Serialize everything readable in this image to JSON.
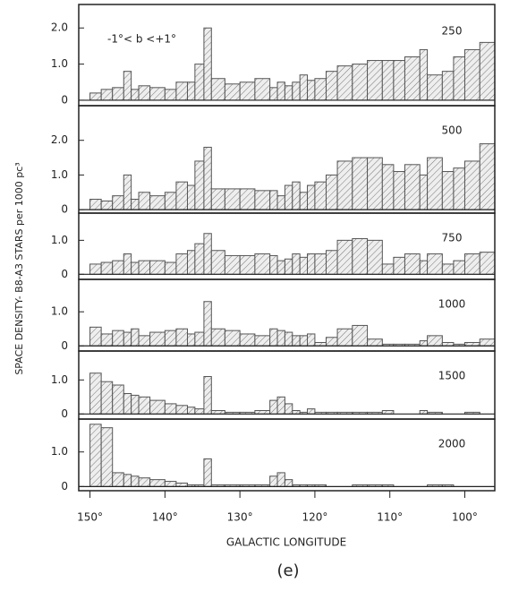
{
  "figure": {
    "ylabel": "SPACE DENSITY- B8-A3 STARS per 1000 pc³",
    "xlabel": "GALACTIC LONGITUDE",
    "caption": "(e)",
    "annotation": "-1°< b <+1°"
  },
  "chart_data": [
    {
      "type": "histogram",
      "label": "250",
      "color": "#555555",
      "xlim": [
        151.5,
        96
      ],
      "ylim": [
        -0.15,
        2.65
      ],
      "yticks": [
        0,
        {
          "value": 1,
          "label": "1.0"
        },
        {
          "value": 2,
          "label": "2.0"
        }
      ],
      "bins": [
        150,
        148.5,
        147,
        145.5,
        144.5,
        143.5,
        142,
        140,
        138.5,
        137,
        136,
        134.8,
        133.8,
        132,
        130,
        128,
        126,
        125,
        124,
        123,
        122,
        121,
        120,
        118.5,
        117,
        115,
        113,
        111,
        109.5,
        108,
        106,
        105,
        103,
        101.5,
        100,
        98,
        96
      ],
      "values": [
        0.2,
        0.3,
        0.35,
        0.8,
        0.3,
        0.4,
        0.35,
        0.3,
        0.5,
        0.5,
        1.0,
        2.0,
        0.6,
        0.45,
        0.5,
        0.6,
        0.35,
        0.5,
        0.4,
        0.5,
        0.7,
        0.55,
        0.6,
        0.8,
        0.95,
        1.0,
        1.1,
        1.1,
        1.1,
        1.2,
        1.4,
        0.7,
        0.8,
        1.2,
        1.4,
        1.6
      ]
    },
    {
      "type": "histogram",
      "label": "500",
      "color": "#555555",
      "xlim": [
        151.5,
        96
      ],
      "ylim": [
        -0.1,
        3.0
      ],
      "yticks": [
        0,
        {
          "value": 1,
          "label": "1.0"
        },
        {
          "value": 2,
          "label": "2.0"
        }
      ],
      "bins": [
        150,
        148.5,
        147,
        145.5,
        144.5,
        143.5,
        142,
        140,
        138.5,
        137,
        136,
        134.8,
        133.8,
        132,
        130,
        128,
        126,
        125,
        124,
        123,
        122,
        121,
        120,
        118.5,
        117,
        115,
        113,
        111,
        109.5,
        108,
        106,
        105,
        103,
        101.5,
        100,
        98,
        96
      ],
      "values": [
        0.3,
        0.25,
        0.4,
        1.0,
        0.3,
        0.5,
        0.4,
        0.5,
        0.8,
        0.7,
        1.4,
        1.8,
        0.6,
        0.6,
        0.6,
        0.55,
        0.55,
        0.4,
        0.7,
        0.8,
        0.5,
        0.7,
        0.8,
        1.0,
        1.4,
        1.5,
        1.5,
        1.3,
        1.1,
        1.3,
        1.0,
        1.5,
        1.1,
        1.2,
        1.4,
        1.9
      ]
    },
    {
      "type": "histogram",
      "label": "750",
      "color": "#555555",
      "xlim": [
        151.5,
        96
      ],
      "ylim": [
        -0.15,
        1.8
      ],
      "yticks": [
        0,
        {
          "value": 1,
          "label": "1.0"
        }
      ],
      "bins": [
        150,
        148.5,
        147,
        145.5,
        144.5,
        143.5,
        142,
        140,
        138.5,
        137,
        136,
        134.8,
        133.8,
        132,
        130,
        128,
        126,
        125,
        124,
        123,
        122,
        121,
        120,
        118.5,
        117,
        115,
        113,
        111,
        109.5,
        108,
        106,
        105,
        103,
        101.5,
        100,
        98,
        96
      ],
      "values": [
        0.3,
        0.35,
        0.4,
        0.6,
        0.35,
        0.4,
        0.4,
        0.35,
        0.6,
        0.7,
        0.9,
        1.2,
        0.7,
        0.55,
        0.55,
        0.6,
        0.55,
        0.4,
        0.45,
        0.6,
        0.5,
        0.6,
        0.6,
        0.7,
        1.0,
        1.05,
        1.0,
        0.3,
        0.5,
        0.6,
        0.4,
        0.6,
        0.3,
        0.4,
        0.6,
        0.65
      ]
    },
    {
      "type": "histogram",
      "label": "1000",
      "color": "#555555",
      "xlim": [
        151.5,
        96
      ],
      "ylim": [
        -0.15,
        1.95
      ],
      "yticks": [
        0,
        {
          "value": 1,
          "label": "1.0"
        }
      ],
      "bins": [
        150,
        148.5,
        147,
        145.5,
        144.5,
        143.5,
        142,
        140,
        138.5,
        137,
        136,
        134.8,
        133.8,
        132,
        130,
        128,
        126,
        125,
        124,
        123,
        122,
        121,
        120,
        118.5,
        117,
        115,
        113,
        111,
        109.5,
        108,
        106,
        105,
        103,
        101.5,
        100,
        98,
        96
      ],
      "values": [
        0.55,
        0.35,
        0.45,
        0.4,
        0.5,
        0.3,
        0.4,
        0.45,
        0.5,
        0.35,
        0.4,
        1.3,
        0.5,
        0.45,
        0.35,
        0.3,
        0.5,
        0.45,
        0.4,
        0.3,
        0.3,
        0.35,
        0.1,
        0.25,
        0.5,
        0.6,
        0.2,
        0.05,
        0.05,
        0.05,
        0.15,
        0.3,
        0.1,
        0.05,
        0.1,
        0.2
      ]
    },
    {
      "type": "histogram",
      "label": "1500",
      "color": "#555555",
      "xlim": [
        151.5,
        96
      ],
      "ylim": [
        -0.15,
        1.85
      ],
      "yticks": [
        0,
        {
          "value": 1,
          "label": "1.0"
        }
      ],
      "bins": [
        150,
        148.5,
        147,
        145.5,
        144.5,
        143.5,
        142,
        140,
        138.5,
        137,
        136,
        134.8,
        133.8,
        132,
        130,
        128,
        126,
        125,
        124,
        123,
        122,
        121,
        120,
        118.5,
        117,
        115,
        113,
        111,
        109.5,
        108,
        106,
        105,
        103,
        101.5,
        100,
        98,
        96
      ],
      "values": [
        1.2,
        0.95,
        0.85,
        0.6,
        0.55,
        0.5,
        0.4,
        0.3,
        0.25,
        0.2,
        0.15,
        1.1,
        0.1,
        0.05,
        0.05,
        0.1,
        0.4,
        0.5,
        0.3,
        0.1,
        0.05,
        0.15,
        0.05,
        0.05,
        0.05,
        0.05,
        0.05,
        0.1,
        0,
        0,
        0.1,
        0.05,
        0,
        0,
        0.05,
        0
      ]
    },
    {
      "type": "histogram",
      "label": "2000",
      "color": "#555555",
      "xlim": [
        151.5,
        96
      ],
      "ylim": [
        -0.12,
        1.95
      ],
      "yticks": [
        0,
        {
          "value": 1,
          "label": "1.0"
        }
      ],
      "bins": [
        150,
        148.5,
        147,
        145.5,
        144.5,
        143.5,
        142,
        140,
        138.5,
        137,
        136,
        134.8,
        133.8,
        132,
        130,
        128,
        126,
        125,
        124,
        123,
        122,
        121,
        120,
        118.5,
        117,
        115,
        113,
        111,
        109.5,
        108,
        106,
        105,
        103,
        101.5,
        100,
        98,
        96
      ],
      "values": [
        1.8,
        1.7,
        0.4,
        0.35,
        0.3,
        0.25,
        0.2,
        0.15,
        0.1,
        0.05,
        0.05,
        0.8,
        0.05,
        0.05,
        0.05,
        0.05,
        0.3,
        0.4,
        0.2,
        0.05,
        0.05,
        0.05,
        0.05,
        0,
        0,
        0.05,
        0.05,
        0.05,
        0,
        0,
        0,
        0.05,
        0.05,
        0,
        0,
        0
      ],
      "xticks": [
        {
          "value": 150,
          "label": "150°"
        },
        {
          "value": 140,
          "label": "140°"
        },
        {
          "value": 130,
          "label": "130°"
        },
        {
          "value": 120,
          "label": "120°"
        },
        {
          "value": 110,
          "label": "110°"
        },
        {
          "value": 100,
          "label": "100°"
        }
      ]
    }
  ]
}
